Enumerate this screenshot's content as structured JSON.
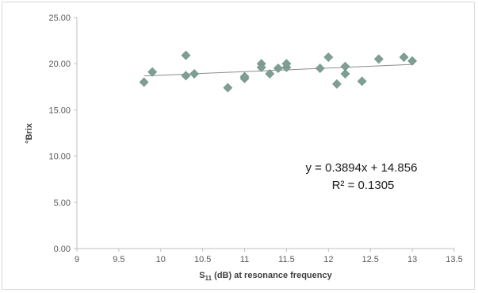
{
  "chart_data": {
    "type": "scatter",
    "title": "",
    "xlabel_main": "S",
    "xlabel_sub": "11",
    "xlabel_rest": " (dB) at resonance frequency",
    "ylabel": "°Brix",
    "xlim": [
      9,
      13.5
    ],
    "ylim": [
      0,
      25
    ],
    "xticks": [
      "9",
      "9.5",
      "10",
      "10.5",
      "11",
      "11.5",
      "12",
      "12.5",
      "13",
      "13.5"
    ],
    "yticks": [
      "0.00",
      "5.00",
      "10.00",
      "15.00",
      "20.00",
      "25.00"
    ],
    "grid": false,
    "marker_color": "#7f9f93",
    "trendline_color": "#8c8c8c",
    "series": [
      {
        "x": [
          9.8,
          9.9,
          10.3,
          10.3,
          10.4,
          10.8,
          11.0,
          11.0,
          11.2,
          11.2,
          11.3,
          11.4,
          11.5,
          11.5,
          11.9,
          12.0,
          12.1,
          12.2,
          12.2,
          12.4,
          12.6,
          12.9,
          13.0
        ],
        "y": [
          18.0,
          19.1,
          20.9,
          18.7,
          18.9,
          17.4,
          18.4,
          18.6,
          20.0,
          19.6,
          18.9,
          19.5,
          19.6,
          20.0,
          19.5,
          20.7,
          17.8,
          19.7,
          18.9,
          18.1,
          20.5,
          20.7,
          20.3
        ]
      }
    ],
    "trendline": {
      "slope": 0.3894,
      "intercept": 14.856,
      "x_start": 9.8,
      "x_end": 13.0
    },
    "annotations": {
      "equation": "y = 0.3894x + 14.856",
      "r2": "R² = 0.1305"
    }
  }
}
